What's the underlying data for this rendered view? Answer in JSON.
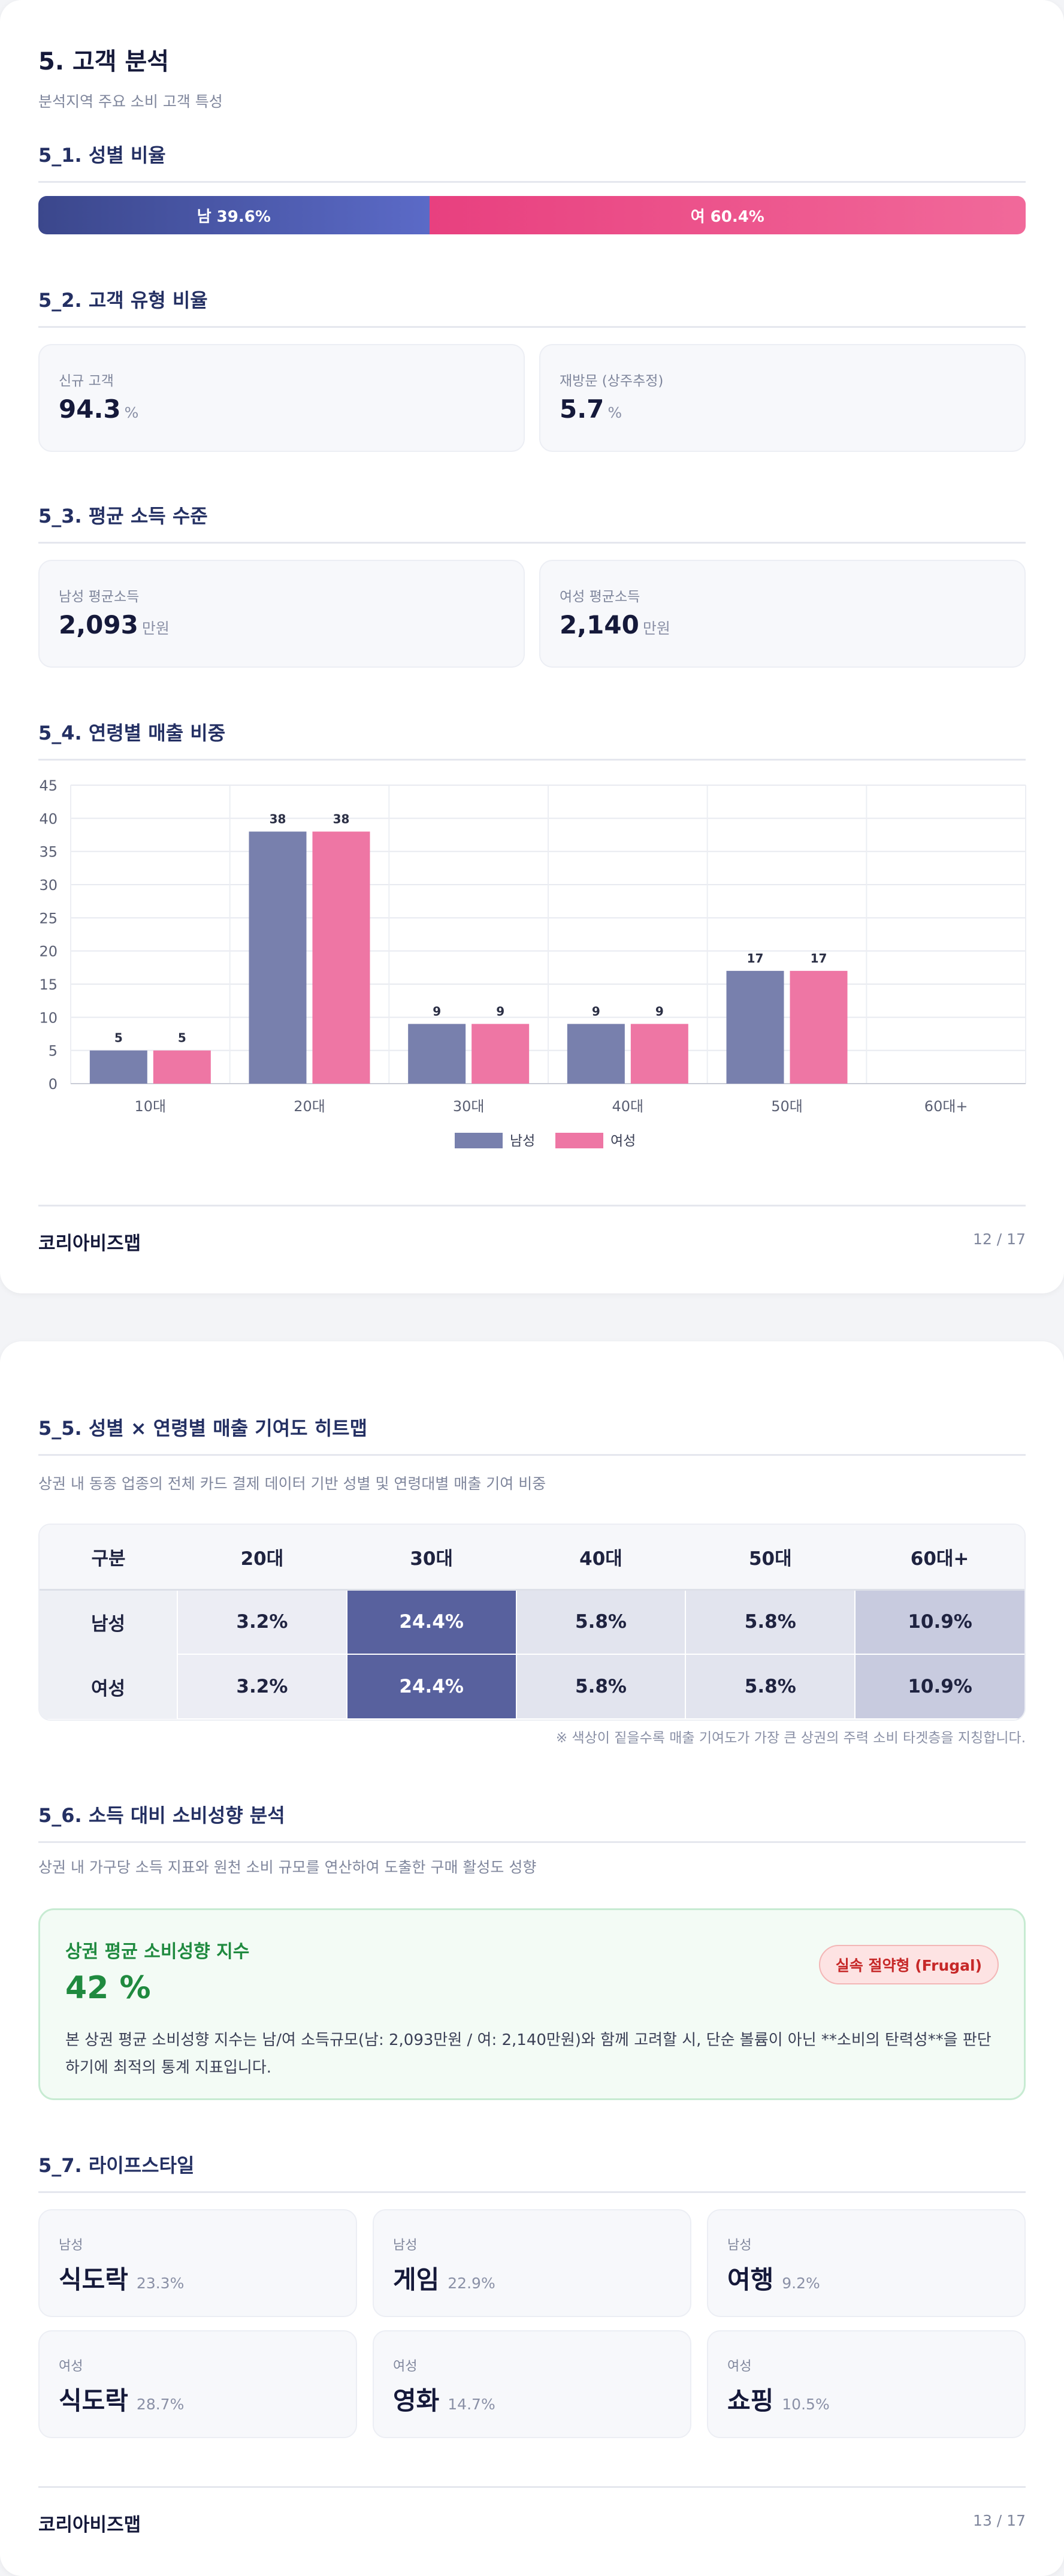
{
  "page1": {
    "title": "5. 고객 분석",
    "subtitle": "분석지역 주요 소비 고객 특성",
    "gender_ratio": {
      "heading": "5_1. 성별 비율",
      "male_label": "남 39.6%",
      "female_label": "여 60.4%",
      "male_share": 39.6,
      "female_share": 60.4,
      "male_color": "#4a57a8",
      "female_color": "#ec4c86"
    },
    "customer_type": {
      "heading": "5_2. 고객 유형 비율",
      "new_label": "신규 고객",
      "new_value": "94.3",
      "new_unit": "%",
      "return_label": "재방문 (상주추정)",
      "return_value": "5.7",
      "return_unit": "%"
    },
    "income": {
      "heading": "5_3. 평균 소득 수준",
      "male_label": "남성 평균소득",
      "male_value": "2,093",
      "male_unit": "만원",
      "female_label": "여성 평균소득",
      "female_value": "2,140",
      "female_unit": "만원"
    },
    "age_sales": {
      "heading": "5_4. 연령별 매출 비중"
    },
    "footer": {
      "brand": "코리아비즈맵",
      "page": "12 / 17"
    }
  },
  "chart_data": {
    "type": "bar",
    "categories": [
      "10대",
      "20대",
      "30대",
      "40대",
      "50대",
      "60대+"
    ],
    "series": [
      {
        "name": "남성",
        "values": [
          5,
          38,
          9,
          9,
          17,
          0
        ],
        "color": "#7880ad"
      },
      {
        "name": "여성",
        "values": [
          5,
          38,
          9,
          9,
          17,
          0
        ],
        "color": "#ee76a4"
      }
    ],
    "yticks": [
      0,
      5,
      10,
      15,
      20,
      25,
      30,
      35,
      40,
      45
    ],
    "ylim": [
      0,
      45
    ],
    "grid": true,
    "legend": "bottom-center",
    "data_labels": true
  },
  "page2": {
    "heatmap": {
      "heading": "5_5. 성별 × 연령별 매출 기여도 히트맵",
      "description": "상권 내 동종 업종의 전체 카드 결제 데이터 기반 성별 및 연령대별 매출 기여 비중",
      "corner": "구분",
      "columns": [
        "20대",
        "30대",
        "40대",
        "50대",
        "60대+"
      ],
      "rows": [
        {
          "label": "남성",
          "cells": [
            "3.2%",
            "24.4%",
            "5.8%",
            "5.8%",
            "10.9%"
          ],
          "values": [
            3.2,
            24.4,
            5.8,
            5.8,
            10.9
          ]
        },
        {
          "label": "여성",
          "cells": [
            "3.2%",
            "24.4%",
            "5.8%",
            "5.8%",
            "10.9%"
          ],
          "values": [
            3.2,
            24.4,
            5.8,
            5.8,
            10.9
          ]
        }
      ],
      "note": "※ 색상이 짙을수록 매출 기여도가 가장 큰 상권의 주력 소비 타겟층을 지칭합니다."
    },
    "spending": {
      "heading": "5_6. 소득 대비 소비성향 분석",
      "description": "상권 내 가구당 소득 지표와 원천 소비 규모를 연산하여 도출한 구매 활성도 성향",
      "card_title": "상권 평균 소비성향 지수",
      "value": "42 %",
      "badge": "실속 절약형 (Frugal)",
      "text": "본 상권 평균 소비성향 지수는 남/여 소득규모(남: 2,093만원 / 여: 2,140만원)와 함께 고려할 시, 단순 볼륨이 아닌 **소비의 탄력성**을 판단하기에 최적의 통계 지표입니다."
    },
    "lifestyle": {
      "heading": "5_7. 라이프스타일",
      "items": [
        {
          "gender": "남성",
          "name": "식도락",
          "pct": "23.3%"
        },
        {
          "gender": "남성",
          "name": "게임",
          "pct": "22.9%"
        },
        {
          "gender": "남성",
          "name": "여행",
          "pct": "9.2%"
        },
        {
          "gender": "여성",
          "name": "식도락",
          "pct": "28.7%"
        },
        {
          "gender": "여성",
          "name": "영화",
          "pct": "14.7%"
        },
        {
          "gender": "여성",
          "name": "쇼핑",
          "pct": "10.5%"
        }
      ]
    },
    "footer": {
      "brand": "코리아비즈맵",
      "page": "13 / 17"
    }
  }
}
